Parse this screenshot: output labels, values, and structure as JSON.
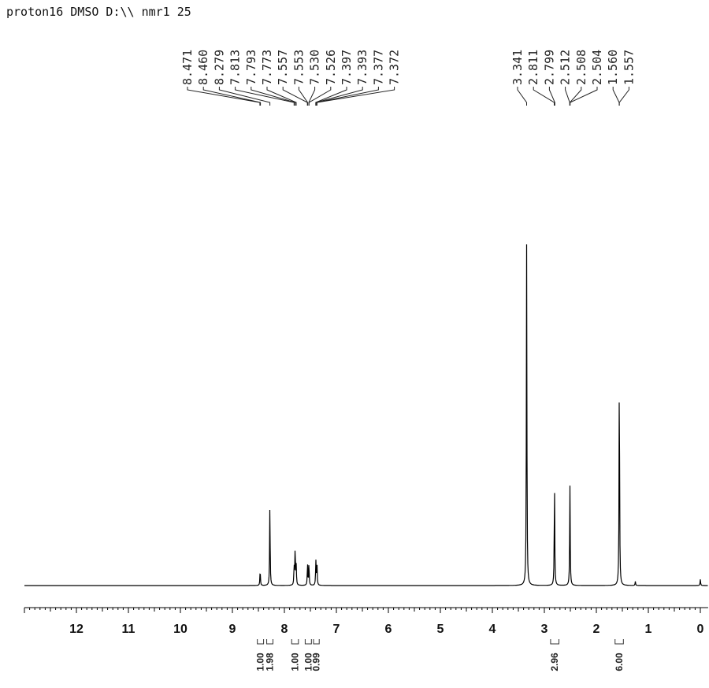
{
  "chart_data": {
    "type": "line",
    "title": "proton16 DMSO D:\\\\ nmr1 25",
    "xlabel": "",
    "ylabel": "",
    "xlim": [
      13.0,
      -0.15
    ],
    "x_ticks": [
      "12",
      "11",
      "10",
      "9",
      "8",
      "7",
      "6",
      "5",
      "4",
      "3",
      "2",
      "1",
      "0"
    ],
    "peak_labels_left": [
      "8.471",
      "8.460",
      "8.279",
      "7.813",
      "7.793",
      "7.773",
      "7.557",
      "7.553",
      "7.530",
      "7.526",
      "7.397",
      "7.393",
      "7.377",
      "7.372"
    ],
    "peak_labels_right": [
      "3.341",
      "2.811",
      "2.799",
      "2.512",
      "2.508",
      "2.504",
      "1.560",
      "1.557"
    ],
    "peaks": [
      {
        "x": 8.466,
        "y": 0.046
      },
      {
        "x": 8.279,
        "y": 0.232
      },
      {
        "x": 7.813,
        "y": 0.056
      },
      {
        "x": 7.793,
        "y": 0.108
      },
      {
        "x": 7.773,
        "y": 0.056
      },
      {
        "x": 7.555,
        "y": 0.064
      },
      {
        "x": 7.528,
        "y": 0.064
      },
      {
        "x": 7.395,
        "y": 0.072
      },
      {
        "x": 7.374,
        "y": 0.068
      },
      {
        "x": 3.341,
        "y": 1.0
      },
      {
        "x": 2.805,
        "y": 0.3
      },
      {
        "x": 2.508,
        "y": 0.294
      },
      {
        "x": 1.558,
        "y": 0.638
      },
      {
        "x": 1.25,
        "y": 0.012
      },
      {
        "x": 0.0,
        "y": 0.018
      }
    ],
    "integrals": [
      {
        "label": "1.00",
        "from": 8.52,
        "to": 8.4
      },
      {
        "label": "1.98",
        "from": 8.34,
        "to": 8.22
      },
      {
        "label": "1.00",
        "from": 7.86,
        "to": 7.73
      },
      {
        "label": "1.00",
        "from": 7.6,
        "to": 7.48
      },
      {
        "label": "0.99",
        "from": 7.44,
        "to": 7.33
      },
      {
        "label": "2.96",
        "from": 2.88,
        "to": 2.72
      },
      {
        "label": "6.00",
        "from": 1.64,
        "to": 1.48
      }
    ]
  }
}
